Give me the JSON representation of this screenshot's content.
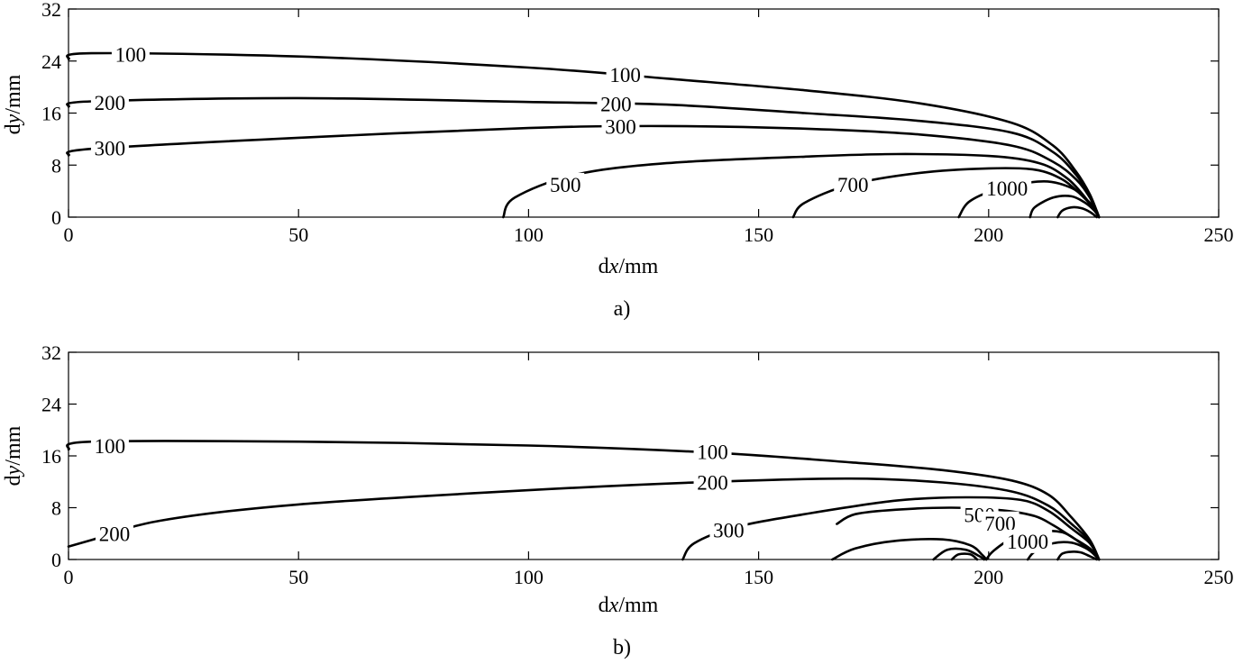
{
  "chart_data": [
    {
      "type": "contour",
      "panel": "a)",
      "xlabel_parts": [
        "d",
        "x",
        "/mm"
      ],
      "ylabel_parts": [
        "d",
        "y",
        "/mm"
      ],
      "xlim": [
        0,
        250
      ],
      "ylim": [
        0,
        32
      ],
      "xticks": [
        0,
        50,
        100,
        150,
        200,
        250
      ],
      "yticks": [
        0,
        8,
        16,
        24,
        32
      ],
      "grid": false,
      "contours": [
        {
          "level": "100",
          "points": [
            [
              0,
              24.3
            ],
            [
              5,
              25.2
            ],
            [
              50,
              24.7
            ],
            [
              100,
              23.0
            ],
            [
              130,
              21.3
            ],
            [
              160,
              19.5
            ],
            [
              185,
              17.5
            ],
            [
              205,
              14.5
            ],
            [
              214,
              11.0
            ],
            [
              219,
              7.0
            ],
            [
              222,
              3.5
            ],
            [
              224,
              0
            ]
          ]
        },
        {
          "level": "200",
          "points": [
            [
              0,
              17.0
            ],
            [
              5,
              17.8
            ],
            [
              50,
              18.3
            ],
            [
              100,
              17.7
            ],
            [
              130,
              17.3
            ],
            [
              160,
              16.0
            ],
            [
              185,
              14.8
            ],
            [
              205,
              13.0
            ],
            [
              214,
              10.0
            ],
            [
              219,
              6.5
            ],
            [
              222,
              3.2
            ],
            [
              224,
              0
            ]
          ]
        },
        {
          "level": "300",
          "points": [
            [
              0,
              9.5
            ],
            [
              5,
              10.5
            ],
            [
              50,
              12.2
            ],
            [
              100,
              13.7
            ],
            [
              130,
              14.0
            ],
            [
              160,
              13.6
            ],
            [
              185,
              12.7
            ],
            [
              205,
              11.0
            ],
            [
              214,
              8.5
            ],
            [
              219,
              5.8
            ],
            [
              222,
              3.0
            ],
            [
              224,
              0
            ]
          ]
        },
        {
          "level": "500",
          "points": [
            [
              94.5,
              0
            ],
            [
              97,
              3
            ],
            [
              110,
              6.5
            ],
            [
              130,
              8.3
            ],
            [
              160,
              9.3
            ],
            [
              180,
              9.7
            ],
            [
              200,
              9.4
            ],
            [
              211,
              8.3
            ],
            [
              217,
              6.0
            ],
            [
              221,
              3.0
            ],
            [
              224,
              0
            ]
          ]
        },
        {
          "level": "700",
          "points": [
            [
              157.5,
              0
            ],
            [
              160,
              2.2
            ],
            [
              170,
              5.0
            ],
            [
              185,
              6.8
            ],
            [
              200,
              7.5
            ],
            [
              210,
              7.3
            ],
            [
              216,
              5.8
            ],
            [
              220,
              3.5
            ],
            [
              223,
              1.5
            ],
            [
              224,
              0
            ]
          ]
        },
        {
          "level": "1000",
          "points": [
            [
              193.5,
              0
            ],
            [
              196,
              2.5
            ],
            [
              203,
              4.5
            ],
            [
              212,
              5.5
            ],
            [
              218,
              4.5
            ],
            [
              221,
              2.8
            ],
            [
              223,
              1.2
            ],
            [
              224,
              0
            ]
          ]
        },
        {
          "level": "",
          "points": [
            [
              209,
              0
            ],
            [
              210,
              1.5
            ],
            [
              214,
              3.0
            ],
            [
              218,
              3.2
            ],
            [
              221,
              2.2
            ],
            [
              223,
              1.0
            ],
            [
              224,
              0
            ]
          ]
        },
        {
          "level": "",
          "points": [
            [
              215,
              0
            ],
            [
              216,
              1.0
            ],
            [
              218,
              1.5
            ],
            [
              220,
              1.4
            ],
            [
              222,
              0.8
            ],
            [
              223.5,
              0
            ]
          ]
        }
      ],
      "labels": [
        {
          "text": "100",
          "x": 13.5,
          "y": 25.0
        },
        {
          "text": "200",
          "x": 9.0,
          "y": 17.6
        },
        {
          "text": "300",
          "x": 9.0,
          "y": 10.6
        },
        {
          "text": "100",
          "x": 121.0,
          "y": 21.9
        },
        {
          "text": "200",
          "x": 119.0,
          "y": 17.4
        },
        {
          "text": "300",
          "x": 120.0,
          "y": 13.9
        },
        {
          "text": "500",
          "x": 108.0,
          "y": 5.0
        },
        {
          "text": "700",
          "x": 170.5,
          "y": 5.0
        },
        {
          "text": "1000",
          "x": 204.0,
          "y": 4.4
        }
      ]
    },
    {
      "type": "contour",
      "panel": "b)",
      "xlabel_parts": [
        "d",
        "x",
        "/mm"
      ],
      "ylabel_parts": [
        "d",
        "y",
        "/mm"
      ],
      "xlim": [
        0,
        250
      ],
      "ylim": [
        0,
        32
      ],
      "xticks": [
        0,
        50,
        100,
        150,
        200,
        250
      ],
      "yticks": [
        0,
        8,
        16,
        24,
        32
      ],
      "grid": false,
      "contours": [
        {
          "level": "100",
          "points": [
            [
              0,
              17.0
            ],
            [
              5,
              18.2
            ],
            [
              50,
              18.2
            ],
            [
              100,
              17.6
            ],
            [
              140,
              16.5
            ],
            [
              170,
              15.0
            ],
            [
              190,
              13.8
            ],
            [
              205,
              12.2
            ],
            [
              213,
              10.0
            ],
            [
              218,
              6.5
            ],
            [
              222,
              3.0
            ],
            [
              224,
              0
            ]
          ]
        },
        {
          "level": "200",
          "points": [
            [
              0,
              2.0
            ],
            [
              5,
              3.0
            ],
            [
              20,
              6.0
            ],
            [
              50,
              8.5
            ],
            [
              100,
              10.7
            ],
            [
              140,
              12.0
            ],
            [
              170,
              12.5
            ],
            [
              190,
              11.9
            ],
            [
              205,
              10.5
            ],
            [
              213,
              8.3
            ],
            [
              218,
              5.5
            ],
            [
              222,
              2.8
            ],
            [
              224,
              0
            ]
          ]
        },
        {
          "level": "300",
          "points": [
            [
              133.5,
              0
            ],
            [
              136,
              2.5
            ],
            [
              145,
              5.0
            ],
            [
              160,
              7.0
            ],
            [
              180,
              9.1
            ],
            [
              195,
              9.6
            ],
            [
              207,
              9.2
            ],
            [
              213,
              7.5
            ],
            [
              218,
              4.8
            ],
            [
              222,
              2.5
            ],
            [
              224,
              0
            ]
          ]
        },
        {
          "level": "500",
          "points": [
            [
              167,
              5.5
            ],
            [
              171,
              7.0
            ],
            [
              180,
              7.7
            ],
            [
              192,
              8.0
            ],
            [
              203,
              7.6
            ],
            [
              210,
              6.7
            ],
            [
              214,
              5.3
            ],
            [
              218,
              3.5
            ],
            [
              222,
              1.7
            ],
            [
              224,
              0
            ]
          ]
        },
        {
          "level": "",
          "points": [
            [
              166,
              0
            ],
            [
              171,
              1.7
            ],
            [
              180,
              2.9
            ],
            [
              190,
              3.1
            ],
            [
              196,
              2.2
            ],
            [
              198.5,
              0.8
            ],
            [
              199.5,
              0
            ]
          ]
        },
        {
          "level": "",
          "points": [
            [
              188,
              0
            ],
            [
              191,
              1.5
            ],
            [
              195,
              1.5
            ],
            [
              198,
              0.5
            ],
            [
              199,
              0
            ]
          ]
        },
        {
          "level": "",
          "points": [
            [
              192,
              0
            ],
            [
              193.5,
              0.8
            ],
            [
              196,
              0.8
            ],
            [
              197.5,
              0
            ]
          ]
        },
        {
          "level": "700",
          "points": [
            [
              199.5,
              0
            ],
            [
              201,
              1.3
            ],
            [
              205,
              3.2
            ],
            [
              211,
              4.3
            ],
            [
              216,
              4.2
            ],
            [
              219.5,
              2.8
            ],
            [
              222,
              1.4
            ],
            [
              224,
              0
            ]
          ]
        },
        {
          "level": "1000",
          "points": [
            [
              208.5,
              0
            ],
            [
              210,
              1.2
            ],
            [
              214,
              2.5
            ],
            [
              218,
              2.6
            ],
            [
              221,
              1.8
            ],
            [
              223,
              0.8
            ],
            [
              224,
              0
            ]
          ]
        },
        {
          "level": "",
          "points": [
            [
              215,
              0
            ],
            [
              216,
              0.9
            ],
            [
              218,
              1.2
            ],
            [
              220,
              1.1
            ],
            [
              222,
              0.5
            ],
            [
              223.5,
              0
            ]
          ]
        }
      ],
      "labels": [
        {
          "text": "100",
          "x": 9.0,
          "y": 17.5
        },
        {
          "text": "200",
          "x": 10.0,
          "y": 4.0
        },
        {
          "text": "100",
          "x": 140.0,
          "y": 16.6
        },
        {
          "text": "200",
          "x": 140.0,
          "y": 11.9
        },
        {
          "text": "300",
          "x": 143.5,
          "y": 4.5
        },
        {
          "text": "500",
          "x": 198.0,
          "y": 6.9
        },
        {
          "text": "700",
          "x": 202.5,
          "y": 5.6
        },
        {
          "text": "1000",
          "x": 208.5,
          "y": 2.8
        }
      ]
    }
  ]
}
